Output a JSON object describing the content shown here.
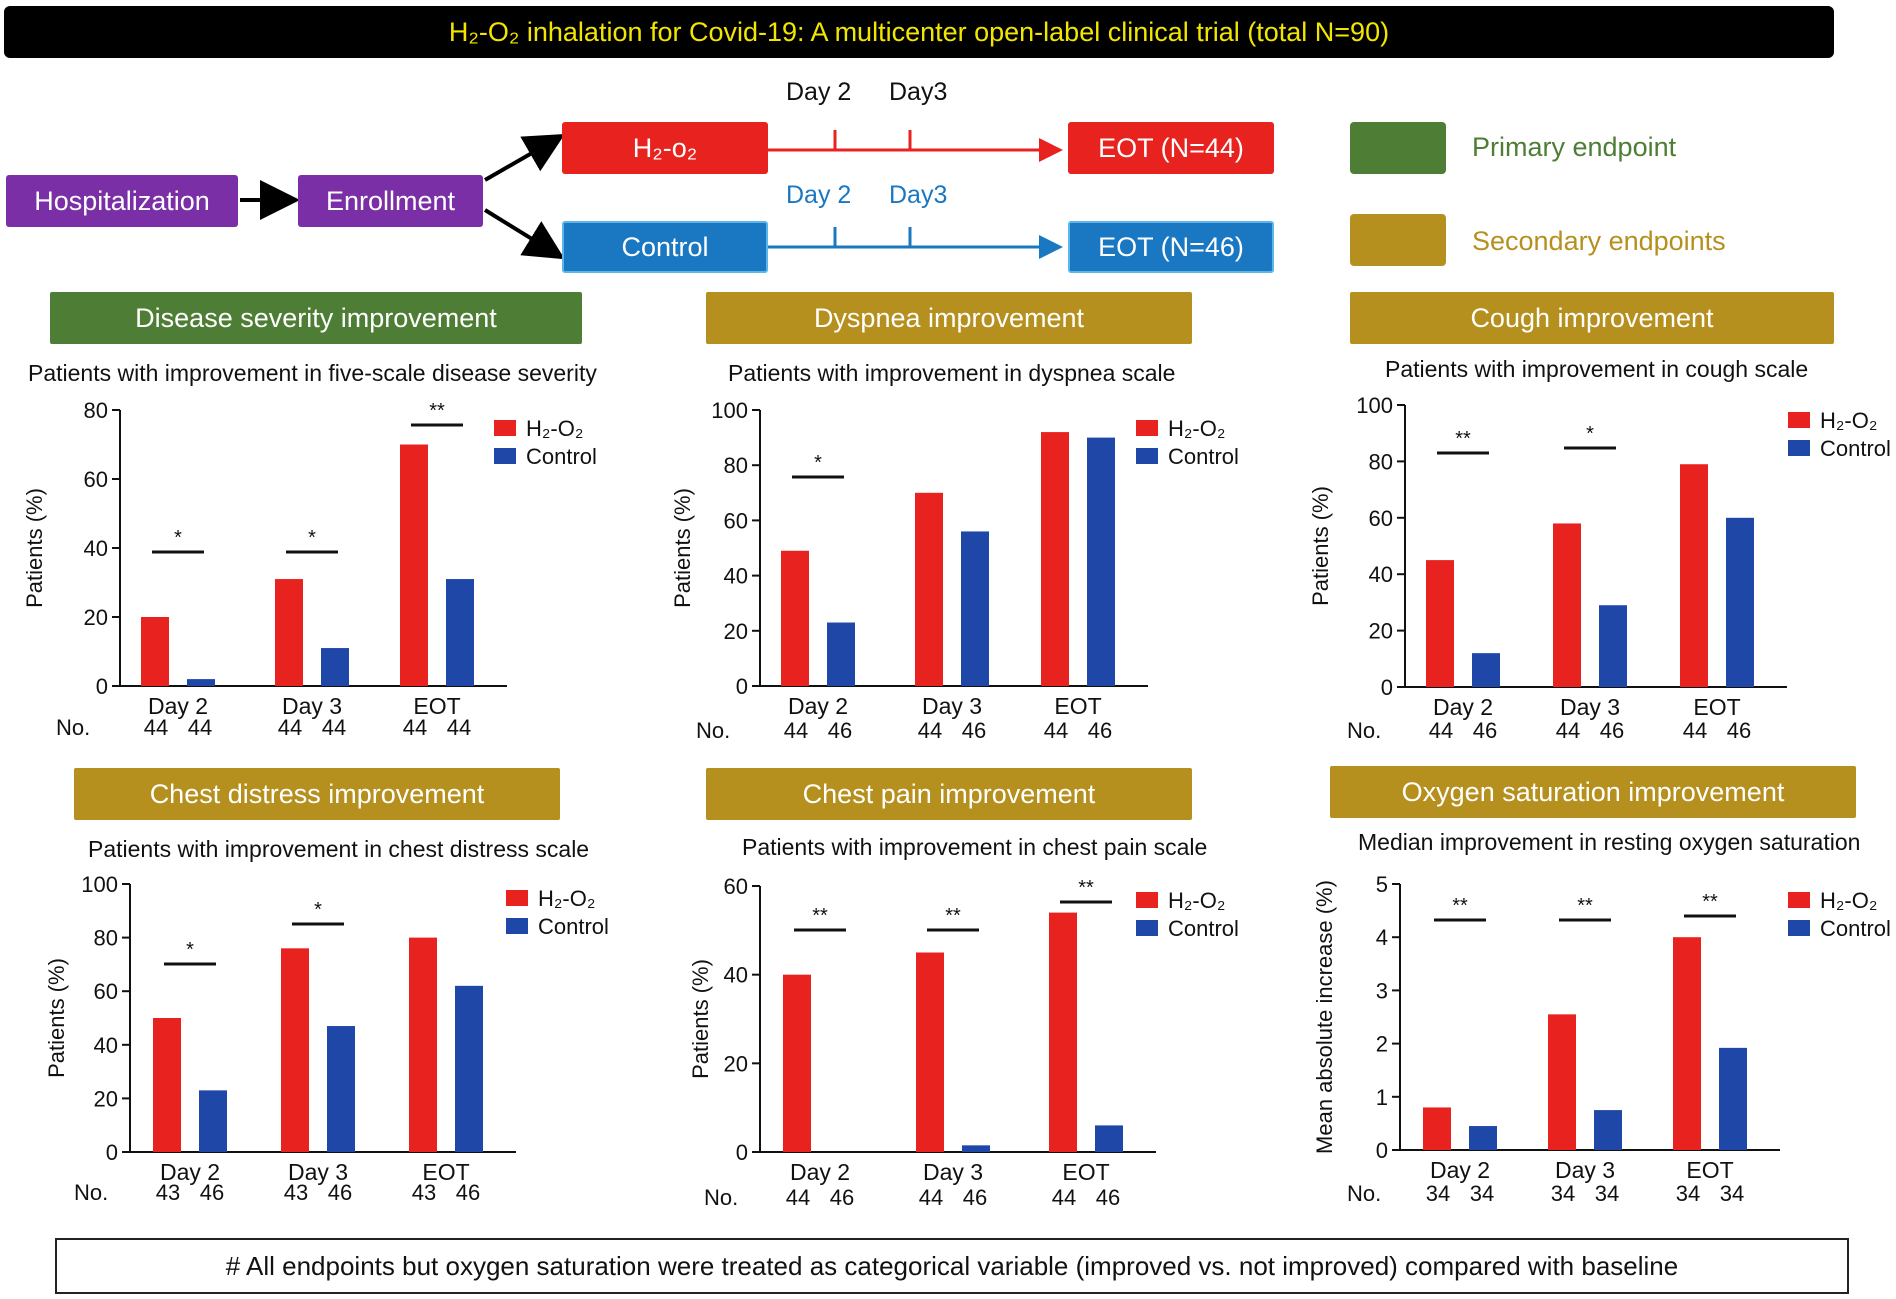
{
  "title": "H₂-O₂ inhalation for Covid-19: A multicenter open-label clinical trial (total N=90)",
  "flow": {
    "hospitalization": "Hospitalization",
    "enrollment": "Enrollment",
    "h2o2_arm": "H₂-o₂",
    "control_arm": "Control",
    "eot_h2o2": "EOT (N=44)",
    "eot_control": "EOT (N=46)",
    "day2_top": "Day 2",
    "day3_top": "Day3",
    "day2_bottom": "Day 2",
    "day3_bottom": "Day3"
  },
  "legend": {
    "primary": "Primary endpoint",
    "secondary": "Secondary endpoints",
    "primary_color": "#4e7d35",
    "secondary_color": "#b6901e"
  },
  "banners": {
    "disease": "Disease severity improvement",
    "dyspnea": "Dyspnea improvement",
    "cough": "Cough improvement",
    "chest_distress": "Chest distress improvement",
    "chest_pain": "Chest pain improvement",
    "oxygen": "Oxygen saturation improvement"
  },
  "footer": "# All endpoints but oxygen saturation were treated as categorical variable (improved vs. not improved) compared with baseline",
  "colors": {
    "h2o2": "#e8231f",
    "control": "#1f47a8"
  },
  "chart_data": [
    {
      "id": "disease",
      "type": "bar",
      "title": "Patients with improvement in five-scale disease severity",
      "ylabel": "Patients (%)",
      "ylim": [
        0,
        80
      ],
      "yticks": [
        0,
        20,
        40,
        60,
        80
      ],
      "categories": [
        "Day 2",
        "Day 3",
        "EOT"
      ],
      "series": [
        {
          "name": "H₂-O₂",
          "values": [
            20,
            31,
            70
          ]
        },
        {
          "name": "Control",
          "values": [
            2,
            11,
            31
          ]
        }
      ],
      "no_label": "No.",
      "n": [
        [
          "44",
          "44"
        ],
        [
          "44",
          "44"
        ],
        [
          "44",
          "44"
        ]
      ],
      "sig": [
        "*",
        "*",
        "**"
      ]
    },
    {
      "id": "dyspnea",
      "type": "bar",
      "title": "Patients with improvement in dyspnea scale",
      "ylabel": "Patients (%)",
      "ylim": [
        0,
        100
      ],
      "yticks": [
        0,
        20,
        40,
        60,
        80,
        100
      ],
      "categories": [
        "Day 2",
        "Day 3",
        "EOT"
      ],
      "series": [
        {
          "name": "H₂-O₂",
          "values": [
            49,
            70,
            92
          ]
        },
        {
          "name": "Control",
          "values": [
            23,
            56,
            90
          ]
        }
      ],
      "no_label": "No.",
      "n": [
        [
          "44",
          "46"
        ],
        [
          "44",
          "46"
        ],
        [
          "44",
          "46"
        ]
      ],
      "sig": [
        "*",
        "",
        ""
      ]
    },
    {
      "id": "cough",
      "type": "bar",
      "title": "Patients with improvement in cough scale",
      "ylabel": "Patients (%)",
      "ylim": [
        0,
        100
      ],
      "yticks": [
        0,
        20,
        40,
        60,
        80,
        100
      ],
      "categories": [
        "Day 2",
        "Day 3",
        "EOT"
      ],
      "series": [
        {
          "name": "H₂-O₂",
          "values": [
            45,
            58,
            79
          ]
        },
        {
          "name": "Control",
          "values": [
            12,
            29,
            60
          ]
        }
      ],
      "no_label": "No.",
      "n": [
        [
          "44",
          "46"
        ],
        [
          "44",
          "46"
        ],
        [
          "44",
          "46"
        ]
      ],
      "sig": [
        "**",
        "*",
        ""
      ]
    },
    {
      "id": "chest_distress",
      "type": "bar",
      "title": "Patients with improvement in chest distress scale",
      "ylabel": "Patients (%)",
      "ylim": [
        0,
        100
      ],
      "yticks": [
        0,
        20,
        40,
        60,
        80,
        100
      ],
      "categories": [
        "Day 2",
        "Day 3",
        "EOT"
      ],
      "series": [
        {
          "name": "H₂-O₂",
          "values": [
            50,
            76,
            80
          ]
        },
        {
          "name": "Control",
          "values": [
            23,
            47,
            62
          ]
        }
      ],
      "no_label": "No.",
      "n": [
        [
          "43",
          "46"
        ],
        [
          "43",
          "46"
        ],
        [
          "43",
          "46"
        ]
      ],
      "sig": [
        "*",
        "*",
        ""
      ]
    },
    {
      "id": "chest_pain",
      "type": "bar",
      "title": "Patients with improvement in chest pain scale",
      "ylabel": "Patients (%)",
      "ylim": [
        0,
        60
      ],
      "yticks": [
        0,
        20,
        40,
        60
      ],
      "categories": [
        "Day 2",
        "Day 3",
        "EOT"
      ],
      "series": [
        {
          "name": "H₂-O₂",
          "values": [
            40,
            45,
            54
          ]
        },
        {
          "name": "Control",
          "values": [
            0,
            1.5,
            6
          ]
        }
      ],
      "no_label": "No.",
      "n": [
        [
          "44",
          "46"
        ],
        [
          "44",
          "46"
        ],
        [
          "44",
          "46"
        ]
      ],
      "sig": [
        "**",
        "**",
        "**"
      ]
    },
    {
      "id": "oxygen",
      "type": "bar",
      "title": "Median improvement in resting oxygen saturation",
      "ylabel": "Mean absolute increase (%)",
      "ylim": [
        0,
        5
      ],
      "yticks": [
        0,
        1,
        2,
        3,
        4,
        5
      ],
      "categories": [
        "Day 2",
        "Day 3",
        "EOT"
      ],
      "series": [
        {
          "name": "H₂-O₂",
          "values": [
            0.8,
            2.55,
            4.0
          ]
        },
        {
          "name": "Control",
          "values": [
            0.45,
            0.75,
            1.92
          ]
        }
      ],
      "no_label": "No.",
      "n": [
        [
          "34",
          "34"
        ],
        [
          "34",
          "34"
        ],
        [
          "34",
          "34"
        ]
      ],
      "sig": [
        "**",
        "**",
        "**"
      ]
    }
  ]
}
